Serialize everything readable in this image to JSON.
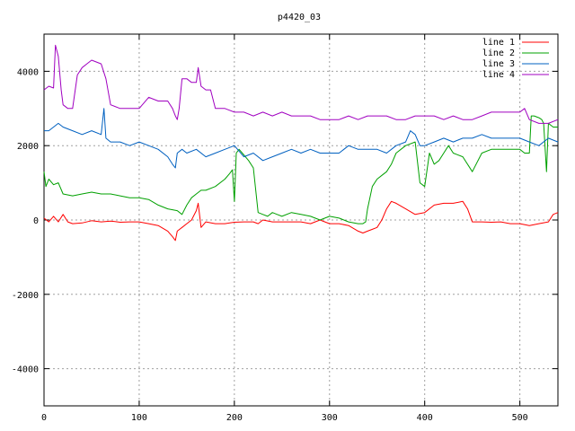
{
  "chart_data": {
    "type": "line",
    "title": "p4420_03",
    "xlabel": "",
    "ylabel": "",
    "xlim": [
      0,
      540
    ],
    "ylim": [
      -5000,
      5000
    ],
    "xticks": [
      0,
      100,
      200,
      300,
      400,
      500
    ],
    "yticks": [
      -4000,
      -2000,
      0,
      2000,
      4000
    ],
    "grid": true,
    "legend_position": "top-right",
    "series": [
      {
        "name": "line 1",
        "color": "#ff0000",
        "x": [
          0,
          5,
          10,
          15,
          20,
          25,
          30,
          40,
          50,
          60,
          70,
          80,
          90,
          100,
          110,
          120,
          130,
          135,
          138,
          140,
          145,
          150,
          155,
          160,
          162,
          165,
          170,
          180,
          190,
          200,
          210,
          215,
          220,
          225,
          230,
          240,
          250,
          260,
          270,
          280,
          290,
          300,
          310,
          320,
          330,
          335,
          340,
          345,
          350,
          355,
          360,
          365,
          370,
          380,
          390,
          400,
          410,
          420,
          430,
          440,
          445,
          450,
          460,
          470,
          480,
          490,
          500,
          510,
          520,
          530,
          535,
          540
        ],
        "y": [
          50,
          -50,
          100,
          -50,
          150,
          -50,
          -100,
          -80,
          -20,
          -50,
          -30,
          -60,
          -50,
          -50,
          -100,
          -150,
          -300,
          -450,
          -550,
          -300,
          -200,
          -100,
          0,
          250,
          450,
          -200,
          -50,
          -100,
          -100,
          -60,
          -50,
          -50,
          -50,
          -100,
          0,
          -50,
          -50,
          -50,
          -50,
          -100,
          0,
          -100,
          -100,
          -150,
          -300,
          -350,
          -300,
          -250,
          -200,
          0,
          300,
          500,
          450,
          300,
          150,
          200,
          400,
          450,
          450,
          500,
          300,
          -50,
          -50,
          -60,
          -50,
          -100,
          -100,
          -150,
          -100,
          -50,
          150,
          200
        ]
      },
      {
        "name": "line 2",
        "color": "#00a000",
        "x": [
          0,
          2,
          5,
          10,
          15,
          20,
          30,
          40,
          50,
          60,
          70,
          80,
          90,
          100,
          110,
          120,
          130,
          140,
          145,
          150,
          155,
          160,
          165,
          170,
          180,
          190,
          195,
          198,
          200,
          202,
          205,
          210,
          215,
          220,
          225,
          230,
          235,
          240,
          245,
          250,
          260,
          270,
          280,
          290,
          300,
          310,
          320,
          330,
          335,
          338,
          340,
          345,
          350,
          355,
          360,
          365,
          370,
          380,
          390,
          395,
          400,
          405,
          410,
          415,
          420,
          425,
          430,
          440,
          450,
          460,
          470,
          480,
          490,
          500,
          505,
          510,
          512,
          515,
          520,
          523,
          525,
          528,
          530,
          535,
          540
        ],
        "y": [
          1300,
          900,
          1100,
          950,
          1000,
          700,
          650,
          700,
          750,
          700,
          700,
          650,
          600,
          600,
          550,
          400,
          300,
          250,
          150,
          400,
          600,
          700,
          800,
          800,
          900,
          1100,
          1250,
          1350,
          500,
          1800,
          1900,
          1750,
          1600,
          1400,
          200,
          150,
          100,
          200,
          150,
          100,
          200,
          150,
          100,
          0,
          100,
          50,
          -50,
          -100,
          -100,
          -50,
          300,
          900,
          1100,
          1200,
          1300,
          1500,
          1800,
          2000,
          2100,
          1000,
          900,
          1800,
          1500,
          1600,
          1800,
          2000,
          1800,
          1700,
          1300,
          1800,
          1900,
          1900,
          1900,
          1900,
          1800,
          1800,
          2800,
          2800,
          2750,
          2700,
          2600,
          1300,
          2600,
          2500,
          2500
        ]
      },
      {
        "name": "line 3",
        "color": "#0060c0",
        "x": [
          0,
          5,
          10,
          15,
          20,
          30,
          40,
          50,
          60,
          63,
          65,
          70,
          80,
          90,
          100,
          110,
          120,
          130,
          135,
          138,
          140,
          145,
          150,
          160,
          170,
          180,
          190,
          200,
          210,
          220,
          230,
          240,
          250,
          260,
          270,
          280,
          290,
          300,
          310,
          320,
          330,
          340,
          350,
          360,
          370,
          380,
          385,
          390,
          395,
          400,
          410,
          420,
          430,
          440,
          450,
          460,
          470,
          480,
          490,
          500,
          510,
          520,
          530,
          540
        ],
        "y": [
          2400,
          2400,
          2500,
          2600,
          2500,
          2400,
          2300,
          2400,
          2300,
          3000,
          2200,
          2100,
          2100,
          2000,
          2100,
          2000,
          1900,
          1700,
          1500,
          1400,
          1800,
          1900,
          1800,
          1900,
          1700,
          1800,
          1900,
          2000,
          1700,
          1800,
          1600,
          1700,
          1800,
          1900,
          1800,
          1900,
          1800,
          1800,
          1800,
          2000,
          1900,
          1900,
          1900,
          1800,
          2000,
          2100,
          2400,
          2300,
          2000,
          2000,
          2100,
          2200,
          2100,
          2200,
          2200,
          2300,
          2200,
          2200,
          2200,
          2200,
          2100,
          2000,
          2200,
          2100
        ]
      },
      {
        "name": "line 4",
        "color": "#a000c0",
        "x": [
          0,
          5,
          10,
          12,
          15,
          18,
          20,
          25,
          30,
          35,
          40,
          45,
          50,
          60,
          65,
          70,
          80,
          90,
          100,
          110,
          120,
          130,
          135,
          138,
          140,
          142,
          145,
          150,
          155,
          160,
          162,
          165,
          170,
          175,
          180,
          190,
          200,
          210,
          220,
          230,
          240,
          250,
          260,
          270,
          280,
          290,
          300,
          310,
          320,
          330,
          340,
          350,
          360,
          370,
          380,
          390,
          400,
          410,
          420,
          430,
          440,
          450,
          460,
          470,
          480,
          490,
          500,
          505,
          510,
          520,
          530,
          540
        ],
        "y": [
          3500,
          3600,
          3550,
          4700,
          4400,
          3500,
          3100,
          3000,
          3000,
          3900,
          4100,
          4200,
          4300,
          4200,
          3800,
          3100,
          3000,
          3000,
          3000,
          3300,
          3200,
          3200,
          3000,
          2800,
          2700,
          3000,
          3800,
          3800,
          3700,
          3700,
          4100,
          3600,
          3500,
          3500,
          3000,
          3000,
          2900,
          2900,
          2800,
          2900,
          2800,
          2900,
          2800,
          2800,
          2800,
          2700,
          2700,
          2700,
          2800,
          2700,
          2800,
          2800,
          2800,
          2700,
          2700,
          2800,
          2800,
          2800,
          2700,
          2800,
          2700,
          2700,
          2800,
          2900,
          2900,
          2900,
          2900,
          3000,
          2700,
          2600,
          2600,
          2700
        ]
      }
    ]
  }
}
